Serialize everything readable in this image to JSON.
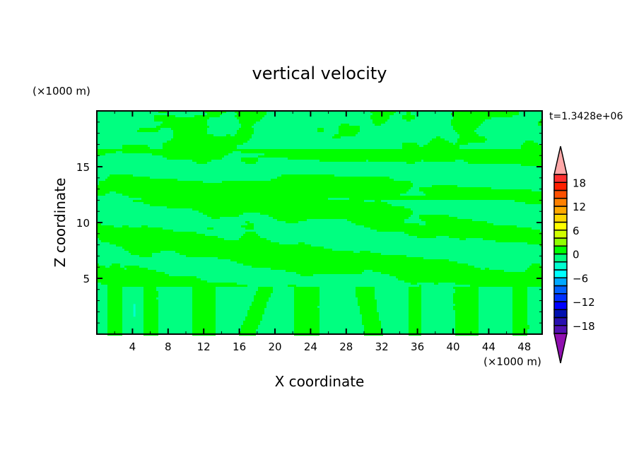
{
  "chart_data": {
    "type": "heatmap",
    "subtype": "filled-contour",
    "title": "vertical velocity",
    "xlabel": "X coordinate",
    "ylabel": "Z coordinate",
    "x_unit": "(×1000 m)",
    "y_unit": "(×1000 m)",
    "time_label": "t=1.3428e+06",
    "xlim": [
      0,
      50
    ],
    "ylim": [
      0,
      20
    ],
    "x_ticks": [
      4,
      8,
      12,
      16,
      20,
      24,
      28,
      32,
      36,
      40,
      44,
      48
    ],
    "x_tick_labels": [
      "4",
      "8",
      "12",
      "16",
      "20",
      "24",
      "28",
      "32",
      "36",
      "40",
      "44",
      "48"
    ],
    "y_ticks": [
      5,
      10,
      15
    ],
    "y_tick_labels": [
      "5",
      "10",
      "15"
    ],
    "grid": false,
    "field_description_values": {
      "dominant_levels": [
        [
          -2,
          0
        ],
        [
          0,
          2
        ]
      ],
      "dominant_colors": [
        "#00ff80",
        "#00ff00"
      ]
    },
    "colorbar": {
      "levels": [
        -20,
        -18,
        -16,
        -14,
        -12,
        -10,
        -8,
        -6,
        -4,
        -2,
        0,
        2,
        4,
        6,
        8,
        10,
        12,
        14,
        16,
        18,
        20
      ],
      "colors": [
        "#5010b0",
        "#2810b0",
        "#0010b0",
        "#0000ff",
        "#0030ff",
        "#0060ff",
        "#00a8ff",
        "#00ffff",
        "#00ffd0",
        "#00ff80",
        "#00ff00",
        "#90ff00",
        "#d0ff00",
        "#ffff00",
        "#ffd800",
        "#ffa800",
        "#ff8000",
        "#ff5000",
        "#ff2000",
        "#ff3030"
      ],
      "over_color": "#ffa8a8",
      "under_color": "#9010b0",
      "tick_labels": [
        "18",
        "12",
        "6",
        "0",
        "−6",
        "−12",
        "−18"
      ],
      "tick_values": [
        18,
        12,
        6,
        0,
        -6,
        -12,
        -18
      ],
      "placement": "right"
    }
  }
}
